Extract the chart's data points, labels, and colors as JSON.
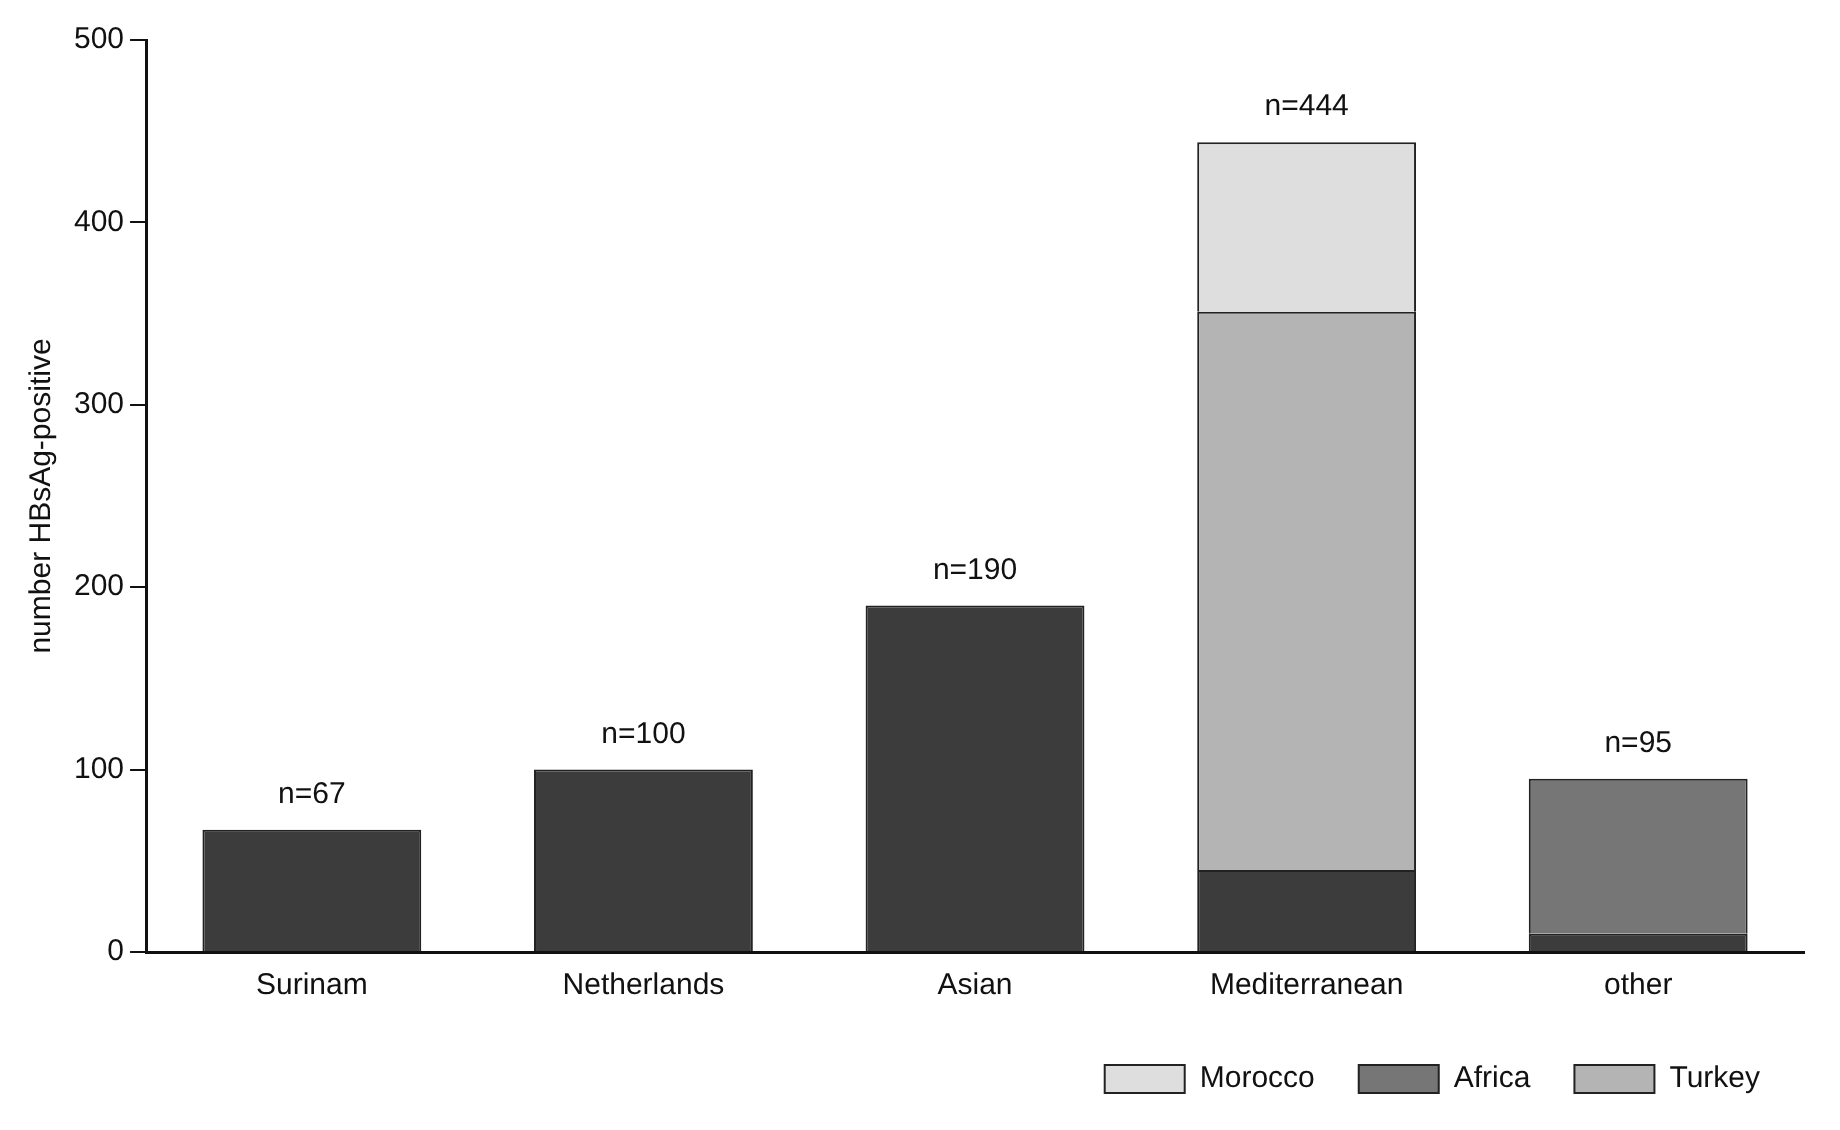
{
  "chart_data": {
    "type": "bar",
    "ylabel": "number HBsAg-positive",
    "categories": [
      "Surinam",
      "Netherlands",
      "Asian",
      "Mediterranean",
      "other"
    ],
    "stacked": true,
    "series": [
      {
        "color": "#3c3c3c",
        "values": [
          67,
          100,
          190,
          45,
          10
        ]
      },
      {
        "name": "Turkey",
        "color": "#b4b4b4",
        "values": [
          null,
          null,
          null,
          306,
          null
        ]
      },
      {
        "name": "Morocco",
        "color": "#dedede",
        "values": [
          null,
          null,
          null,
          93,
          null
        ]
      },
      {
        "name": "Africa",
        "color": "#767676",
        "values": [
          null,
          null,
          null,
          null,
          85
        ]
      }
    ],
    "totals": [
      "n=67",
      "n=100",
      "n=190",
      "n=444",
      "n=95"
    ],
    "ylim": [
      0,
      500
    ],
    "yticks": [
      0,
      100,
      200,
      300,
      400,
      500
    ],
    "grid": false,
    "legend": "bottom right"
  }
}
